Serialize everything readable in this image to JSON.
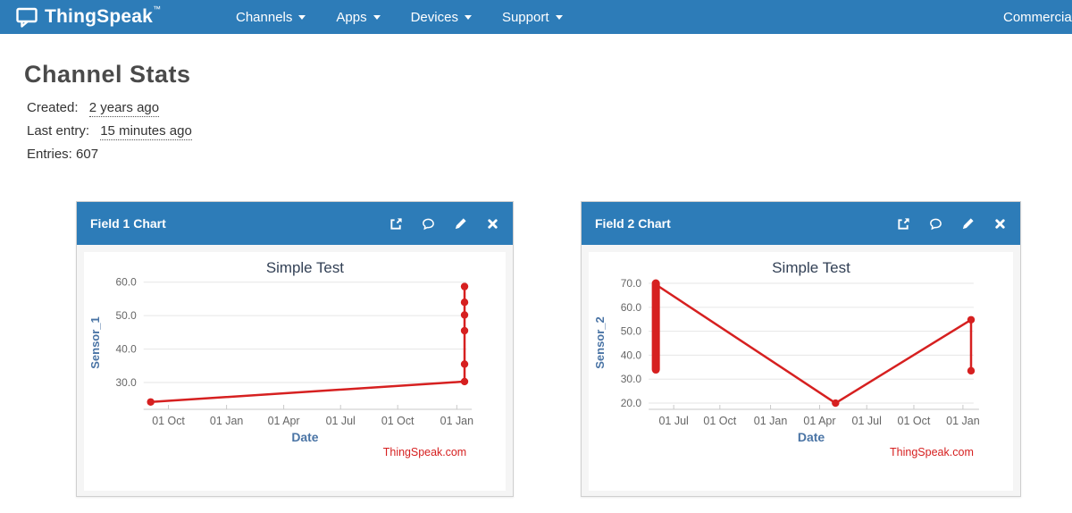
{
  "navbar": {
    "brand": "ThingSpeak",
    "brand_tm": "™",
    "items": [
      {
        "label": "Channels"
      },
      {
        "label": "Apps"
      },
      {
        "label": "Devices"
      },
      {
        "label": "Support"
      }
    ],
    "right_item": "Commercial Use"
  },
  "page": {
    "title": "Channel Stats",
    "created_label": "Created:",
    "created_value": "2 years ago",
    "last_entry_label": "Last entry:",
    "last_entry_value": "15 minutes ago",
    "entries_label": "Entries:",
    "entries_value": "607"
  },
  "panels": [
    {
      "title": "Field 1 Chart",
      "icons": [
        "external-link",
        "comment",
        "edit",
        "close"
      ],
      "chart_data": {
        "type": "line",
        "title": "Simple Test",
        "xlabel": "Date",
        "ylabel": "Sensor_1",
        "credit": "ThingSpeak.com",
        "line_color": "#d62020",
        "title_color": "#334156",
        "axis_label_color": "#4a74a5",
        "tick_color": "#666666",
        "ylim": [
          22,
          61.8
        ],
        "y_ticks": [
          30,
          40,
          50,
          60
        ],
        "x_ticks": [
          {
            "label": "01 Oct",
            "pos": 0.077
          },
          {
            "label": "01 Jan",
            "pos": 0.257
          },
          {
            "label": "01 Apr",
            "pos": 0.434
          },
          {
            "label": "01 Jul",
            "pos": 0.61
          },
          {
            "label": "01 Oct",
            "pos": 0.787
          },
          {
            "label": "01 Jan",
            "pos": 0.97
          }
        ],
        "points": [
          {
            "x": 0.022,
            "y": 24.2
          },
          {
            "x": 0.994,
            "y": 30.3
          },
          {
            "x": 0.994,
            "y": 35.5
          },
          {
            "x": 0.994,
            "y": 45.5
          },
          {
            "x": 0.994,
            "y": 50.2
          },
          {
            "x": 0.994,
            "y": 54.0
          },
          {
            "x": 0.994,
            "y": 58.7
          }
        ],
        "markers": [
          {
            "x": 0.022,
            "y": 24.2
          },
          {
            "x": 0.994,
            "y": 30.3
          },
          {
            "x": 0.994,
            "y": 35.5
          },
          {
            "x": 0.994,
            "y": 45.5
          },
          {
            "x": 0.994,
            "y": 50.2
          },
          {
            "x": 0.994,
            "y": 54.0
          },
          {
            "x": 0.994,
            "y": 58.7
          }
        ]
      }
    },
    {
      "title": "Field 2 Chart",
      "icons": [
        "external-link",
        "comment",
        "edit",
        "close"
      ],
      "chart_data": {
        "type": "line",
        "title": "Simple Test",
        "xlabel": "Date",
        "ylabel": "Sensor_2",
        "credit": "ThingSpeak.com",
        "line_color": "#d62020",
        "title_color": "#334156",
        "axis_label_color": "#4a74a5",
        "tick_color": "#666666",
        "ylim": [
          17.4,
          73
        ],
        "y_ticks": [
          20,
          30,
          40,
          50,
          60,
          70
        ],
        "x_ticks": [
          {
            "label": "01 Jul",
            "pos": 0.077
          },
          {
            "label": "01 Oct",
            "pos": 0.219
          },
          {
            "label": "01 Jan",
            "pos": 0.375
          },
          {
            "label": "01 Apr",
            "pos": 0.526
          },
          {
            "label": "01 Jul",
            "pos": 0.671
          },
          {
            "label": "01 Oct",
            "pos": 0.816
          },
          {
            "label": "01 Jan",
            "pos": 0.967
          }
        ],
        "points": [
          {
            "x": 0.022,
            "y": 69.5
          },
          {
            "x": 0.575,
            "y": 20.0
          },
          {
            "x": 0.992,
            "y": 54.8
          },
          {
            "x": 0.992,
            "y": 33.5
          }
        ],
        "cluster": {
          "x": 0.022,
          "from": 34.0,
          "to": 70.0
        },
        "markers": [
          {
            "x": 0.575,
            "y": 20.0
          },
          {
            "x": 0.992,
            "y": 54.8
          },
          {
            "x": 0.992,
            "y": 33.5
          }
        ]
      }
    }
  ]
}
